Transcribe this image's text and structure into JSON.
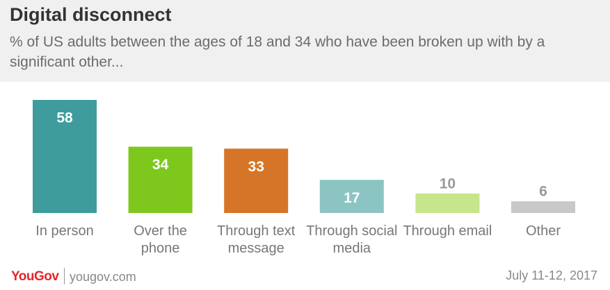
{
  "chart_data": {
    "type": "bar",
    "title": "Digital disconnect",
    "subtitle": "% of US adults between the ages of 18 and 34 who have been broken up with by a significant other...",
    "categories": [
      "In person",
      "Over the phone",
      "Through text message",
      "Through social media",
      "Through email",
      "Other"
    ],
    "values": [
      58,
      34,
      33,
      17,
      10,
      6
    ],
    "colors": [
      "#3f9c9c",
      "#7ec81d",
      "#d67527",
      "#8cc4c4",
      "#c6e58c",
      "#c8c8c8"
    ]
  },
  "footer": {
    "logo": "YouGov",
    "url": "yougov.com",
    "date": "July 11-12, 2017"
  }
}
